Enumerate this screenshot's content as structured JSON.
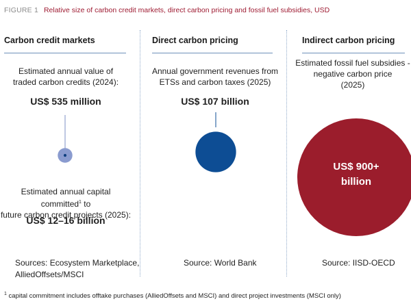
{
  "figure": {
    "label": "FIGURE 1",
    "title": "Relative size of carbon credit markets, direct carbon pricing and fossil fuel subsidies, USD"
  },
  "columns": {
    "credit": {
      "title": "Carbon credit markets",
      "desc_top_line1": "Estimated annual value of",
      "desc_top_line2": "traded carbon credits (2024):",
      "value_top": "US$ 535 million",
      "desc_bottom_line1": "Estimated annual capital committed",
      "desc_bottom_sup": "1",
      "desc_bottom_line1_end": " to",
      "desc_bottom_line2": "future carbon credit projects (2025):",
      "value_bottom": "US$ 12–16 billion",
      "source_line1": "Sources: Ecosystem Marketplace,",
      "source_line2": "AlliedOffsets/MSCI"
    },
    "direct": {
      "title": "Direct carbon pricing",
      "desc_line1": "Annual government revenues from",
      "desc_line2": "ETSs and carbon taxes (2025)",
      "value": "US$ 107 billion",
      "source": "Source: World Bank"
    },
    "indirect": {
      "title": "Indirect carbon pricing",
      "desc_line1": "Estimated fossil fuel subsidies -",
      "desc_line2": "negative carbon price",
      "desc_line3": "(2025)",
      "value_line1": "US$ 900+",
      "value_line2": "billion",
      "source": "Source: IISD-OECD"
    }
  },
  "footnote": {
    "sup": "1",
    "text": " capital commitment includes offtake purchases (AlliedOffsets and MSCI) and direct project investments (MSCI only)"
  },
  "colors": {
    "title_red": "#9e1b32",
    "rule_blue": "#6d8fb8",
    "credit_outer": "#8a9bcf",
    "credit_inner": "#0f3f7f",
    "direct_blue": "#0d4d94",
    "indirect_red": "#9b1d2c"
  },
  "chart_data": {
    "type": "bubble",
    "unit": "USD billion",
    "series": [
      {
        "category": "Carbon credit markets",
        "items": [
          {
            "label": "Estimated annual value of traded carbon credits (2024)",
            "value": 0.535
          },
          {
            "label": "Estimated annual capital committed to future carbon credit projects (2025)",
            "value_range": [
              12,
              16
            ]
          }
        ]
      },
      {
        "category": "Direct carbon pricing",
        "items": [
          {
            "label": "Annual government revenues from ETSs and carbon taxes (2025)",
            "value": 107
          }
        ]
      },
      {
        "category": "Indirect carbon pricing",
        "items": [
          {
            "label": "Estimated fossil fuel subsidies - negative carbon price (2025)",
            "value": 900,
            "lower_bound": true
          }
        ]
      }
    ]
  }
}
